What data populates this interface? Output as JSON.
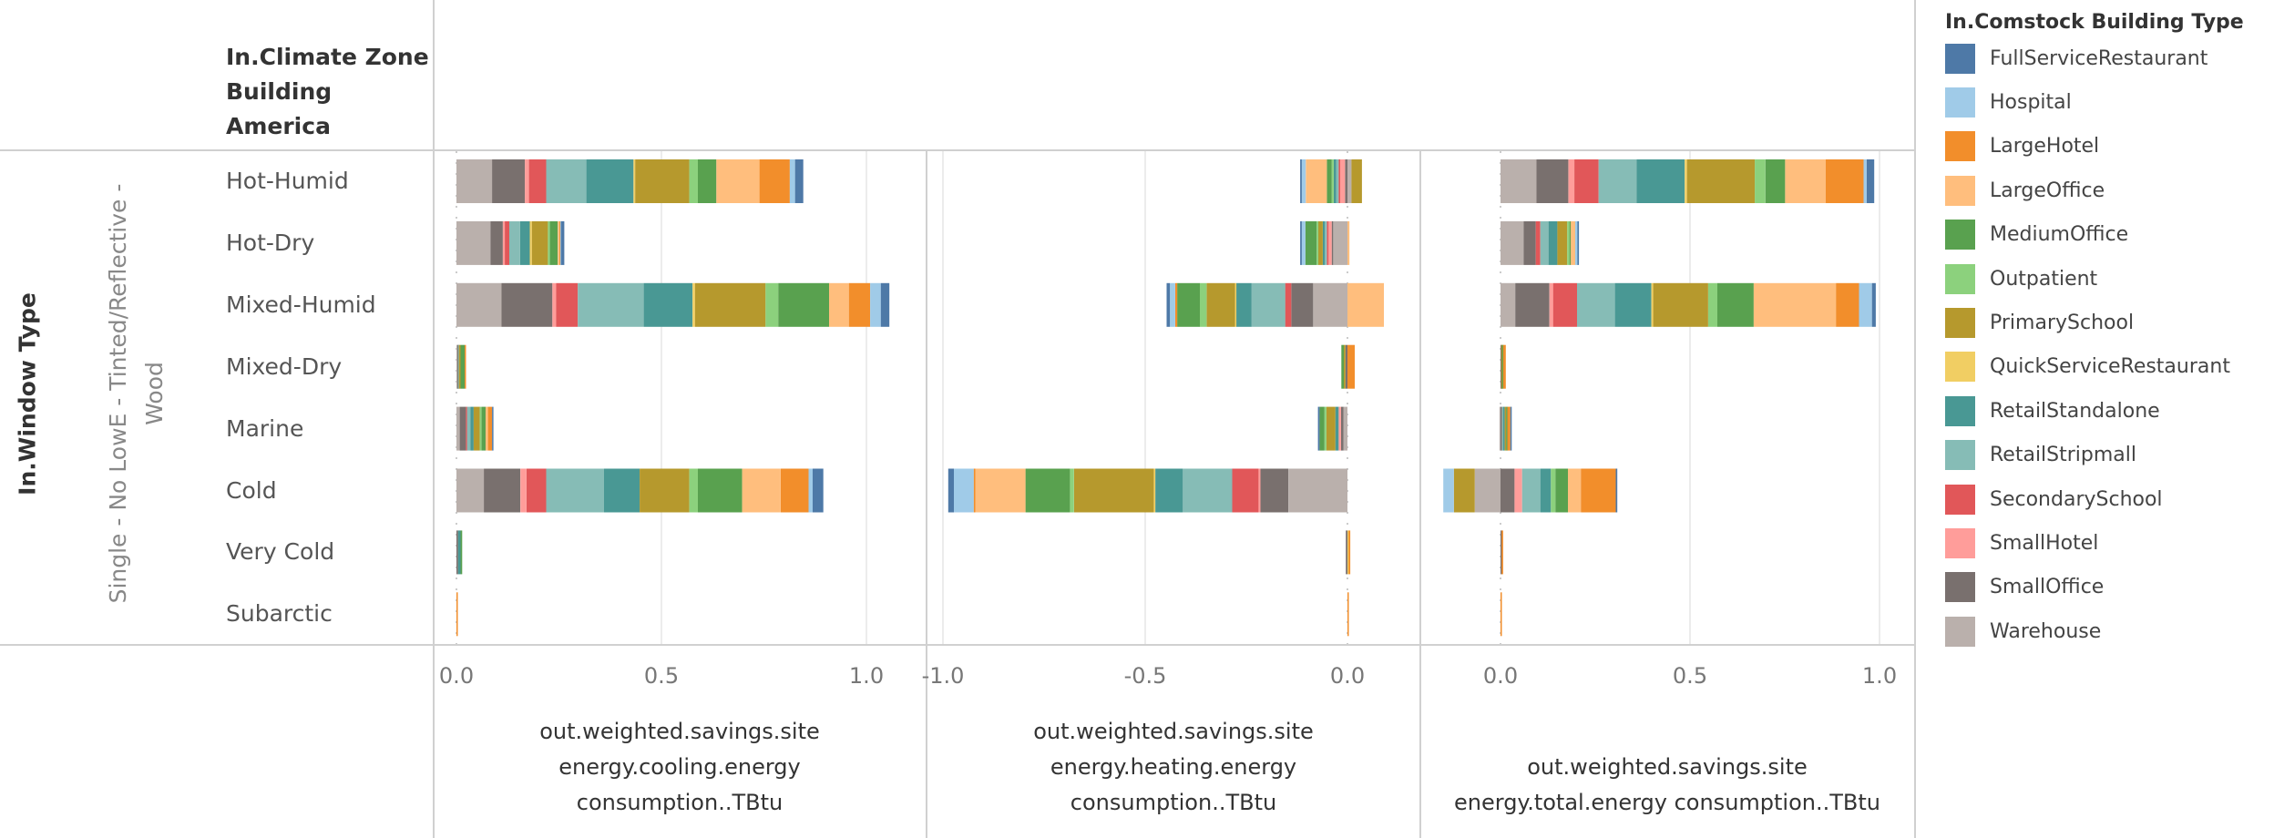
{
  "chart_data": {
    "type": "bar",
    "orientation": "horizontal",
    "stacked": true,
    "row_header_title": [
      "In.Climate Zone",
      "Building",
      "America"
    ],
    "outer_row_header_title": "In.Window Type",
    "outer_row_value": [
      "Single - No LowE - Tinted/Reflective -",
      "Wood"
    ],
    "categories": [
      "Hot-Humid",
      "Hot-Dry",
      "Mixed-Humid",
      "Mixed-Dry",
      "Marine",
      "Cold",
      "Very Cold",
      "Subarctic"
    ],
    "legend": {
      "title": "In.Comstock Building Type",
      "position": "right",
      "items": [
        {
          "name": "FullServiceRestaurant",
          "color": "#4e79a7"
        },
        {
          "name": "Hospital",
          "color": "#a0cbe8"
        },
        {
          "name": "LargeHotel",
          "color": "#f28e2b"
        },
        {
          "name": "LargeOffice",
          "color": "#ffbe7d"
        },
        {
          "name": "MediumOffice",
          "color": "#59a14f"
        },
        {
          "name": "Outpatient",
          "color": "#8cd17d"
        },
        {
          "name": "PrimarySchool",
          "color": "#b6992d"
        },
        {
          "name": "QuickServiceRestaurant",
          "color": "#f1ce63"
        },
        {
          "name": "RetailStandalone",
          "color": "#499894"
        },
        {
          "name": "RetailStripmall",
          "color": "#86bcb6"
        },
        {
          "name": "SecondarySchool",
          "color": "#e15759"
        },
        {
          "name": "SmallHotel",
          "color": "#ff9d9a"
        },
        {
          "name": "SmallOffice",
          "color": "#79706e"
        },
        {
          "name": "Warehouse",
          "color": "#bab0ac"
        }
      ]
    },
    "panels": [
      {
        "id": "cooling",
        "xlabel": [
          "out.weighted.savings.site",
          "energy.cooling.energy",
          "consumption..TBtu"
        ],
        "xlim": [
          -0.05,
          1.07
        ],
        "ticks": [
          {
            "value": 0.0,
            "label": "0.0"
          },
          {
            "value": 0.5,
            "label": "0.5"
          },
          {
            "value": 1.0,
            "label": "1.0"
          }
        ],
        "series": {
          "Hot-Humid": {
            "Warehouse": 0.087,
            "SmallOffice": 0.08,
            "SmallHotel": 0.01,
            "SecondarySchool": 0.042,
            "RetailStripmall": 0.098,
            "RetailStandalone": 0.115,
            "QuickServiceRestaurant": 0.004,
            "PrimarySchool": 0.132,
            "Outpatient": 0.021,
            "MediumOffice": 0.045,
            "LargeOffice": 0.105,
            "LargeHotel": 0.074,
            "Hospital": 0.013,
            "FullServiceRestaurant": 0.02
          },
          "Hot-Dry": {
            "Warehouse": 0.083,
            "SmallOffice": 0.03,
            "SmallHotel": 0.005,
            "SecondarySchool": 0.011,
            "RetailStripmall": 0.026,
            "RetailStandalone": 0.024,
            "QuickServiceRestaurant": 0.005,
            "PrimarySchool": 0.039,
            "Outpatient": 0.005,
            "MediumOffice": 0.019,
            "LargeOffice": 0.004,
            "LargeHotel": 0.002,
            "Hospital": 0.002,
            "FullServiceRestaurant": 0.008
          },
          "Mixed-Humid": {
            "Warehouse": 0.11,
            "SmallOffice": 0.124,
            "SmallHotel": 0.009,
            "SecondarySchool": 0.053,
            "RetailStripmall": 0.161,
            "RetailStandalone": 0.119,
            "QuickServiceRestaurant": 0.006,
            "PrimarySchool": 0.172,
            "Outpatient": 0.031,
            "MediumOffice": 0.124,
            "LargeOffice": 0.048,
            "LargeHotel": 0.052,
            "Hospital": 0.026,
            "FullServiceRestaurant": 0.021
          },
          "Mixed-Dry": {
            "Warehouse": 0.002,
            "SmallOffice": 0.002,
            "RetailStripmall": 0.002,
            "PrimarySchool": 0.004,
            "MediumOffice": 0.01,
            "LargeHotel": 0.002
          },
          "Marine": {
            "Warehouse": 0.008,
            "SmallOffice": 0.015,
            "SecondarySchool": 0.003,
            "RetailStripmall": 0.008,
            "RetailStandalone": 0.008,
            "PrimarySchool": 0.015,
            "Outpatient": 0.004,
            "MediumOffice": 0.01,
            "LargeOffice": 0.006,
            "LargeHotel": 0.01,
            "FullServiceRestaurant": 0.003
          },
          "Cold": {
            "Warehouse": 0.067,
            "SmallOffice": 0.089,
            "SmallHotel": 0.015,
            "SecondarySchool": 0.048,
            "RetailStripmall": 0.141,
            "RetailStandalone": 0.087,
            "PrimarySchool": 0.121,
            "Outpatient": 0.021,
            "MediumOffice": 0.108,
            "LargeOffice": 0.094,
            "LargeHotel": 0.068,
            "Hospital": 0.01,
            "FullServiceRestaurant": 0.026
          },
          "Very Cold": {
            "SmallOffice": 0.004,
            "RetailStandalone": 0.006,
            "MediumOffice": 0.004
          },
          "Subarctic": {
            "LargeHotel": 0.003
          }
        }
      },
      {
        "id": "heating",
        "xlabel": [
          "out.weighted.savings.site",
          "energy.heating.energy",
          "consumption..TBtu"
        ],
        "xlim": [
          -1.1,
          0.18
        ],
        "ticks": [
          {
            "value": -1.0,
            "label": "-1.0"
          },
          {
            "value": -0.5,
            "label": "-0.5"
          },
          {
            "value": 0.0,
            "label": "0.0"
          }
        ],
        "series": {
          "Hot-Humid": {
            "Warehouse": 0.01,
            "SmallOffice": -0.006,
            "SmallHotel": -0.012,
            "SecondarySchool": -0.004,
            "RetailStripmall": -0.006,
            "RetailStandalone": -0.006,
            "PrimarySchool": 0.026,
            "Outpatient": -0.005,
            "MediumOffice": -0.012,
            "LargeOffice": -0.052,
            "Hospital": -0.01,
            "FullServiceRestaurant": -0.004
          },
          "Hot-Dry": {
            "Warehouse": -0.036,
            "SmallOffice": -0.003,
            "SmallHotel": -0.008,
            "SecondarySchool": -0.004,
            "RetailStripmall": -0.005,
            "RetailStandalone": -0.005,
            "PrimarySchool": -0.011,
            "Outpatient": -0.004,
            "MediumOffice": -0.028,
            "LargeOffice": 0.005,
            "Hospital": -0.009,
            "FullServiceRestaurant": -0.004
          },
          "Mixed-Humid": {
            "Warehouse": -0.085,
            "SmallOffice": -0.054,
            "SecondarySchool": -0.015,
            "RetailStripmall": -0.083,
            "RetailStandalone": -0.038,
            "QuickServiceRestaurant": -0.003,
            "PrimarySchool": -0.07,
            "Outpatient": -0.017,
            "MediumOffice": -0.056,
            "LargeOffice": 0.09,
            "LargeHotel": -0.005,
            "Hospital": -0.013,
            "FullServiceRestaurant": -0.008
          },
          "Mixed-Dry": {
            "SmallOffice": -0.005,
            "PrimarySchool": -0.004,
            "MediumOffice": -0.006,
            "LargeHotel": 0.018
          },
          "Marine": {
            "Warehouse": -0.01,
            "SmallOffice": -0.006,
            "SmallHotel": -0.006,
            "PrimarySchool": -0.022,
            "Outpatient": -0.005,
            "MediumOffice": -0.012,
            "RetailStandalone": -0.008,
            "FullServiceRestaurant": -0.004
          },
          "Cold": {
            "Warehouse": -0.146,
            "SmallOffice": -0.069,
            "SmallHotel": -0.005,
            "SecondarySchool": -0.065,
            "RetailStripmall": -0.122,
            "RetailStandalone": -0.068,
            "QuickServiceRestaurant": -0.004,
            "PrimarySchool": -0.197,
            "Outpatient": -0.01,
            "MediumOffice": -0.11,
            "LargeOffice": -0.124,
            "LargeHotel": -0.004,
            "Hospital": -0.049,
            "FullServiceRestaurant": -0.014
          },
          "Very Cold": {
            "SmallOffice": -0.004,
            "LargeHotel": 0.004,
            "QuickServiceRestaurant": 0.003
          },
          "Subarctic": {
            "LargeHotel": 0.002
          }
        }
      },
      {
        "id": "total",
        "xlabel": [
          "out.weighted.savings.site",
          "energy.total.energy consumption..TBtu"
        ],
        "xlim": [
          -0.15,
          1.1
        ],
        "ticks": [
          {
            "value": 0.0,
            "label": "0.0"
          },
          {
            "value": 0.5,
            "label": "0.5"
          },
          {
            "value": 1.0,
            "label": "1.0"
          }
        ],
        "series": {
          "Hot-Humid": {
            "Warehouse": 0.095,
            "SmallOffice": 0.084,
            "SmallHotel": 0.016,
            "SecondarySchool": 0.064,
            "RetailStripmall": 0.1,
            "RetailStandalone": 0.127,
            "QuickServiceRestaurant": 0.006,
            "PrimarySchool": 0.179,
            "Outpatient": 0.028,
            "MediumOffice": 0.052,
            "LargeOffice": 0.107,
            "LargeHotel": 0.1,
            "Hospital": 0.008,
            "FullServiceRestaurant": 0.02
          },
          "Hot-Dry": {
            "Warehouse": 0.061,
            "SmallOffice": 0.032,
            "SecondarySchool": 0.012,
            "RetailStripmall": 0.022,
            "RetailStandalone": 0.023,
            "PrimarySchool": 0.026,
            "Outpatient": 0.006,
            "MediumOffice": 0.003,
            "LargeOffice": 0.012,
            "FullServiceRestaurant": 0.004,
            "Hospital": 0.006
          },
          "Mixed-Humid": {
            "Warehouse": 0.039,
            "SmallOffice": 0.09,
            "SmallHotel": 0.01,
            "SecondarySchool": 0.063,
            "RetailStripmall": 0.1,
            "RetailStandalone": 0.096,
            "QuickServiceRestaurant": 0.005,
            "PrimarySchool": 0.145,
            "Outpatient": 0.024,
            "MediumOffice": 0.096,
            "LargeOffice": 0.217,
            "LargeHotel": 0.061,
            "Hospital": 0.034,
            "FullServiceRestaurant": 0.01
          },
          "Mixed-Dry": {
            "SmallOffice": 0.002,
            "MediumOffice": 0.003,
            "PrimarySchool": 0.002,
            "LargeHotel": 0.007
          },
          "Marine": {
            "Warehouse": -0.003,
            "SmallOffice": 0.004,
            "RetailStripmall": 0.003,
            "RetailStandalone": 0.004,
            "PrimarySchool": 0.004,
            "MediumOffice": 0.003,
            "LargeHotel": 0.008,
            "FullServiceRestaurant": 0.002
          },
          "Cold": {
            "Warehouse": -0.068,
            "SmallOffice": 0.037,
            "SmallHotel": 0.02,
            "RetailStripmall": 0.048,
            "RetailStandalone": 0.028,
            "PrimarySchool": -0.055,
            "Outpatient": 0.012,
            "MediumOffice": 0.033,
            "LargeOffice": 0.034,
            "LargeHotel": 0.092,
            "Hospital": -0.028,
            "FullServiceRestaurant": 0.004
          },
          "Very Cold": {
            "SmallOffice": 0.003,
            "LargeHotel": 0.004
          },
          "Subarctic": {
            "LargeHotel": 0.002
          }
        }
      }
    ]
  }
}
